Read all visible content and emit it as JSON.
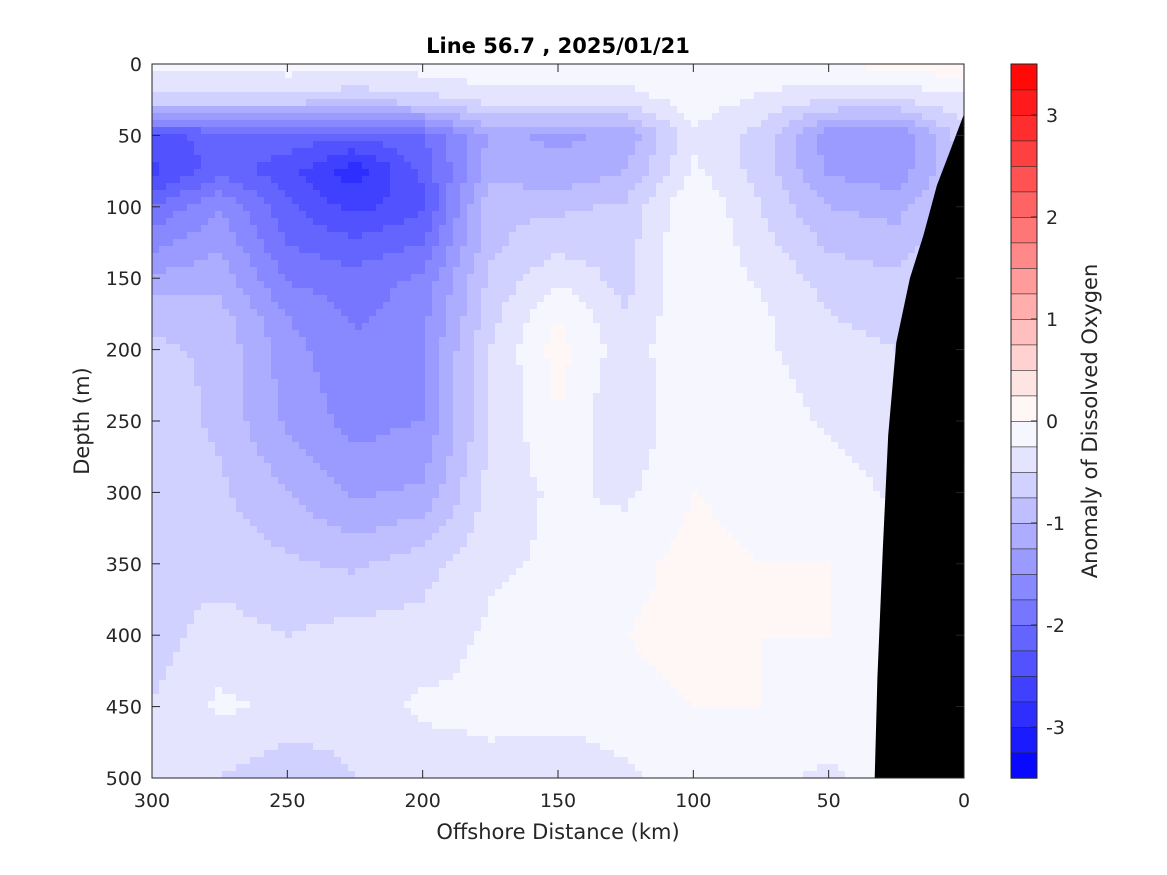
{
  "chart_data": {
    "type": "heatmap",
    "title": "Line 56.7 , 2025/01/21",
    "xlabel": "Offshore Distance (km)",
    "ylabel": "Depth (m)",
    "colorbar_label": "Anomaly of Dissolved Oxygen",
    "xlim": [
      300,
      0
    ],
    "ylim": [
      500,
      0
    ],
    "x_ticks": [
      300,
      250,
      200,
      150,
      100,
      50,
      0
    ],
    "y_ticks": [
      0,
      50,
      100,
      150,
      200,
      250,
      300,
      350,
      400,
      450,
      500
    ],
    "colorbar_range": [
      -3.5,
      3.5
    ],
    "colorbar_ticks": [
      3,
      2,
      1,
      0,
      -1,
      -2,
      -3
    ],
    "colorbar_step": 0.25,
    "colors": {
      "negative": "#0000ff",
      "positive": "#ff0000",
      "neutral": "#ffffff",
      "bathymetry": "#000000"
    },
    "x_grid": [
      300,
      275,
      250,
      225,
      200,
      175,
      150,
      125,
      100,
      75,
      50,
      25,
      0
    ],
    "y_grid": [
      0,
      25,
      50,
      75,
      100,
      125,
      150,
      175,
      200,
      250,
      300,
      350,
      400,
      450,
      500
    ],
    "values": [
      [
        -0.2,
        -0.2,
        -0.1,
        -0.1,
        -0.1,
        0.0,
        0.0,
        0.0,
        0.0,
        0.0,
        0.0,
        0.1,
        0.2
      ],
      [
        -0.6,
        -0.6,
        -0.6,
        -0.7,
        -0.6,
        -0.4,
        -0.4,
        -0.4,
        -0.1,
        -0.3,
        -0.5,
        -0.5,
        -0.3
      ],
      [
        -2.3,
        -2.2,
        -2.1,
        -2.2,
        -2.0,
        -1.2,
        -1.3,
        -1.2,
        -0.3,
        -0.6,
        -1.4,
        -1.5,
        -0.6
      ],
      [
        -2.6,
        -2.1,
        -2.4,
        -2.9,
        -2.2,
        -1.1,
        -1.2,
        -1.0,
        -0.2,
        -0.6,
        -1.3,
        -1.4,
        -0.7
      ],
      [
        -2.0,
        -1.5,
        -2.2,
        -2.6,
        -2.3,
        -0.8,
        -0.8,
        -0.7,
        0.0,
        -0.5,
        -1.0,
        -1.1,
        -0.6
      ],
      [
        -1.6,
        -1.3,
        -2.0,
        -2.2,
        -2.0,
        -0.8,
        -0.6,
        -0.6,
        0.0,
        -0.4,
        -0.8,
        -0.9,
        -0.5
      ],
      [
        -1.2,
        -1.1,
        -1.8,
        -1.9,
        -1.7,
        -0.7,
        -0.3,
        -0.6,
        0.0,
        -0.3,
        -0.6,
        -0.7,
        -0.4
      ],
      [
        -0.8,
        -0.9,
        -1.5,
        -1.8,
        -1.6,
        -0.6,
        0.0,
        -0.5,
        0.0,
        -0.2,
        -0.5,
        -0.6,
        -0.4
      ],
      [
        -0.7,
        -0.8,
        -1.4,
        -1.7,
        -1.5,
        -0.5,
        0.1,
        -0.4,
        0.0,
        -0.2,
        -0.4,
        -0.5,
        -0.3
      ],
      [
        -0.6,
        -0.8,
        -1.3,
        -1.6,
        -1.5,
        -0.5,
        0.0,
        -0.5,
        0.0,
        -0.1,
        -0.3,
        -0.4,
        -0.3
      ],
      [
        -0.6,
        -0.7,
        -1.0,
        -1.3,
        -1.2,
        -0.4,
        -0.2,
        -0.3,
        0.0,
        -0.1,
        -0.1,
        -0.3,
        -0.2
      ],
      [
        -0.5,
        -0.6,
        -0.7,
        -0.8,
        -0.6,
        -0.3,
        -0.2,
        -0.1,
        0.1,
        0.0,
        0.0,
        -0.1,
        -0.1
      ],
      [
        -0.6,
        -0.4,
        -0.5,
        -0.4,
        -0.4,
        -0.2,
        -0.1,
        0.0,
        0.1,
        0.0,
        0.0,
        0.0,
        0.0
      ],
      [
        -0.5,
        -0.2,
        -0.3,
        -0.4,
        -0.2,
        -0.2,
        -0.1,
        -0.1,
        0.0,
        0.0,
        -0.1,
        0.0,
        0.0
      ],
      [
        -0.4,
        -0.5,
        -0.7,
        -0.5,
        -0.4,
        -0.3,
        -0.5,
        -0.3,
        -0.1,
        -0.2,
        -0.3,
        -0.1,
        0.0
      ]
    ],
    "bathymetry_profile": [
      [
        0,
        35
      ],
      [
        5,
        60
      ],
      [
        10,
        85
      ],
      [
        15,
        120
      ],
      [
        20,
        150
      ],
      [
        25,
        195
      ],
      [
        28,
        260
      ],
      [
        30,
        340
      ],
      [
        32,
        430
      ],
      [
        33,
        500
      ]
    ]
  }
}
